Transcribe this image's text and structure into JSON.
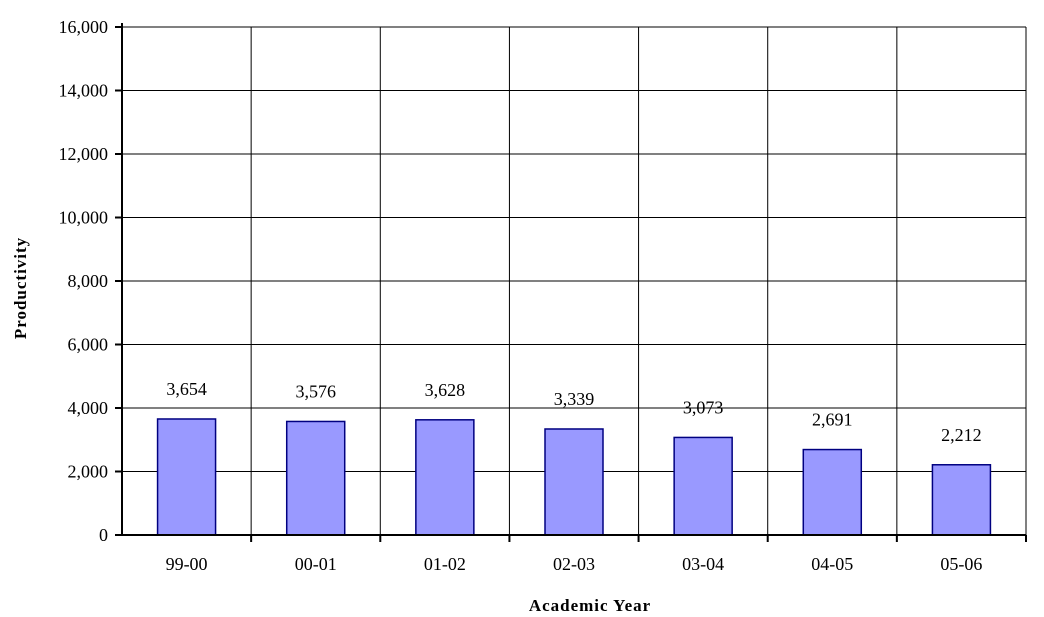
{
  "colors": {
    "bar_fill": "#9999ff",
    "bar_stroke": "#000080",
    "grid": "#000000",
    "axis": "#000000"
  },
  "chart_data": {
    "type": "bar",
    "categories": [
      "99-00",
      "00-01",
      "01-02",
      "02-03",
      "03-04",
      "04-05",
      "05-06"
    ],
    "values": [
      3654,
      3576,
      3628,
      3339,
      3073,
      2691,
      2212
    ],
    "data_labels": [
      "3,654",
      "3,576",
      "3,628",
      "3,339",
      "3,073",
      "2,691",
      "2,212"
    ],
    "title": "",
    "xlabel": "Academic Year",
    "ylabel": "Productivity",
    "ylim": [
      0,
      16000
    ],
    "y_ticks": [
      0,
      2000,
      4000,
      6000,
      8000,
      10000,
      12000,
      14000,
      16000
    ],
    "y_tick_labels": [
      "0",
      "2,000",
      "4,000",
      "6,000",
      "8,000",
      "10,000",
      "12,000",
      "14,000",
      "16,000"
    ],
    "grid": true,
    "legend": "none"
  }
}
